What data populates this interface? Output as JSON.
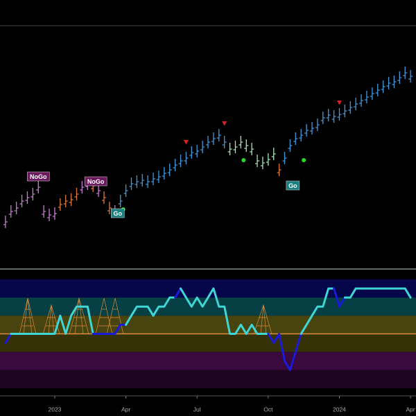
{
  "chart_data": [
    {
      "type": "ohlc",
      "xlim": [
        -10,
        66
      ],
      "ylim": [
        0,
        350
      ],
      "x": [
        -9,
        -8,
        -7,
        -6,
        -5,
        -4,
        -3,
        -2,
        -1,
        0,
        1,
        2,
        3,
        4,
        5,
        6,
        7,
        8,
        9,
        10,
        11,
        12,
        13,
        14,
        15,
        16,
        17,
        18,
        19,
        20,
        21,
        22,
        23,
        24,
        25,
        26,
        27,
        28,
        29,
        30,
        31,
        32,
        33,
        34,
        35,
        36,
        37,
        38,
        39,
        40,
        41,
        42,
        43,
        44,
        45,
        46,
        47,
        48,
        49,
        50,
        51,
        52,
        53,
        54,
        55,
        56,
        57,
        58,
        59,
        60,
        61,
        62,
        63,
        64,
        65
      ],
      "values": [
        67,
        82,
        87,
        97,
        102,
        107,
        117,
        82,
        77,
        79,
        92,
        97,
        99,
        107,
        117,
        122,
        119,
        112,
        102,
        87,
        82,
        97,
        112,
        122,
        125,
        127,
        125,
        129,
        132,
        137,
        142,
        149,
        155,
        159,
        167,
        169,
        175,
        182,
        187,
        192,
        182,
        172,
        175,
        182,
        177,
        172,
        155,
        152,
        157,
        165,
        142,
        159,
        177,
        187,
        192,
        199,
        202,
        207,
        217,
        221,
        219,
        222,
        227,
        232,
        237,
        242,
        247,
        252,
        257,
        262,
        267,
        269,
        275,
        282,
        277
      ],
      "colors": [
        "#c77dd1",
        "#c77dd1",
        "#c77dd1",
        "#c77dd1",
        "#c77dd1",
        "#c77dd1",
        "#c77dd1",
        "#c77dd1",
        "#c77dd1",
        "#c77dd1",
        "#e0783a",
        "#e0783a",
        "#e0783a",
        "#e0783a",
        "#c77dd1",
        "#c77dd1",
        "#e0783a",
        "#c77dd1",
        "#e0783a",
        "#e0783a",
        "#c77dd1",
        "#3d9be0",
        "#3d9be0",
        "#3d9be0",
        "#3d9be0",
        "#3d9be0",
        "#3d9be0",
        "#3d9be0",
        "#3d9be0",
        "#3d9be0",
        "#3d9be0",
        "#3d9be0",
        "#3d9be0",
        "#3d9be0",
        "#3d9be0",
        "#3d9be0",
        "#3d9be0",
        "#3d9be0",
        "#3d9be0",
        "#3d9be0",
        "#3d9be0",
        "#a8e6b5",
        "#a8e6b5",
        "#a8e6b5",
        "#a8e6b5",
        "#a8e6b5",
        "#a8e6b5",
        "#a8e6b5",
        "#a8e6b5",
        "#a8e6b5",
        "#e0783a",
        "#3d9be0",
        "#3d9be0",
        "#3d9be0",
        "#3d9be0",
        "#3d9be0",
        "#3d9be0",
        "#3d9be0",
        "#3d9be0",
        "#3d9be0",
        "#3d9be0",
        "#3d9be0",
        "#3d9be0",
        "#3d9be0",
        "#3d9be0",
        "#3d9be0",
        "#3d9be0",
        "#3d9be0",
        "#3d9be0",
        "#3d9be0",
        "#3d9be0",
        "#3d9be0",
        "#3d9be0",
        "#3d9be0",
        "#3d9be0"
      ],
      "annotations": [
        {
          "x": -3,
          "y": 132,
          "text": "NoGo",
          "color": "#6b1a5e"
        },
        {
          "x": 7.5,
          "y": 125,
          "text": "NoGo",
          "color": "#6b1a5e"
        },
        {
          "x": 11.5,
          "y": 79,
          "text": "Go",
          "color": "#1a7f7f"
        },
        {
          "x": 43.5,
          "y": 119,
          "text": "Go",
          "color": "#1a7f7f"
        }
      ],
      "signals": [
        {
          "x": 24,
          "y": 182,
          "shape": "triangle-down",
          "color": "#e02020"
        },
        {
          "x": 31,
          "y": 209,
          "shape": "triangle-down",
          "color": "#e02020"
        },
        {
          "x": 52,
          "y": 239,
          "shape": "triangle-down",
          "color": "#e02020"
        },
        {
          "x": 12.5,
          "y": 85,
          "shape": "circle",
          "color": "#22dd22"
        },
        {
          "x": 34.5,
          "y": 156,
          "shape": "circle",
          "color": "#22dd22"
        },
        {
          "x": 45.5,
          "y": 156,
          "shape": "circle",
          "color": "#22dd22"
        }
      ]
    },
    {
      "type": "line",
      "xlim": [
        -10,
        66
      ],
      "ylim": [
        -6,
        6
      ],
      "xticks": [
        {
          "value": 0,
          "label": "2023"
        },
        {
          "value": 13,
          "label": "Apr"
        },
        {
          "value": 26,
          "label": "Jul"
        },
        {
          "value": 39,
          "label": "Oct"
        },
        {
          "value": 52,
          "label": "2024"
        },
        {
          "value": 65,
          "label": "Apr"
        }
      ],
      "bands": [
        {
          "from": 4,
          "to": 6,
          "color": "#06064a"
        },
        {
          "from": 2,
          "to": 4,
          "color": "#063f44"
        },
        {
          "from": 0,
          "to": 2,
          "color": "#474410"
        },
        {
          "from": -2,
          "to": 0,
          "color": "#363208"
        },
        {
          "from": -4,
          "to": -2,
          "color": "#3a0a3e"
        },
        {
          "from": -6,
          "to": -4,
          "color": "#1e0622"
        }
      ],
      "zero_line": {
        "value": 0,
        "color": "#e08a3a"
      },
      "x": [
        -9,
        -8,
        -7,
        -6,
        -5,
        -4,
        -3,
        -2,
        -1,
        0,
        1,
        2,
        3,
        4,
        5,
        6,
        7,
        8,
        9,
        10,
        11,
        12,
        13,
        14,
        15,
        16,
        17,
        18,
        19,
        20,
        21,
        22,
        23,
        24,
        25,
        26,
        27,
        28,
        29,
        30,
        31,
        32,
        33,
        34,
        35,
        36,
        37,
        38,
        39,
        40,
        41,
        42,
        43,
        44,
        45,
        46,
        47,
        48,
        49,
        50,
        51,
        52,
        53,
        54,
        55,
        56,
        57,
        58,
        59,
        60,
        61,
        62,
        63,
        64,
        65
      ],
      "values": [
        -1,
        0,
        0,
        0,
        0,
        0,
        0,
        0,
        0,
        0,
        2,
        0,
        2,
        3,
        3,
        3,
        0,
        0,
        0,
        0,
        0,
        1,
        1,
        2,
        3,
        3,
        3,
        2,
        3,
        3,
        4,
        4,
        5,
        4,
        3,
        4,
        3,
        4,
        5,
        3,
        3,
        0,
        0,
        1,
        0,
        1,
        0,
        0,
        0,
        -1,
        0,
        -3,
        -4,
        -2,
        0,
        1,
        2,
        3,
        3,
        5,
        5,
        3,
        4,
        4,
        5,
        5,
        5,
        5,
        5,
        5,
        5,
        5,
        5,
        5,
        4
      ],
      "colors": [
        "#1a1ad8",
        "#1a1ad8",
        "#3fd6d6",
        "#3fd6d6",
        "#3fd6d6",
        "#3fd6d6",
        "#3fd6d6",
        "#3fd6d6",
        "#3fd6d6",
        "#3fd6d6",
        "#3fd6d6",
        "#3fd6d6",
        "#3fd6d6",
        "#3fd6d6",
        "#3fd6d6",
        "#3fd6d6",
        "#3fd6d6",
        "#1a1ad8",
        "#1a1ad8",
        "#1a1ad8",
        "#1a1ad8",
        "#1a1ad8",
        "#1a1ad8",
        "#3fd6d6",
        "#3fd6d6",
        "#3fd6d6",
        "#3fd6d6",
        "#3fd6d6",
        "#3fd6d6",
        "#3fd6d6",
        "#3fd6d6",
        "#3fd6d6",
        "#1a1ad8",
        "#3fd6d6",
        "#3fd6d6",
        "#3fd6d6",
        "#3fd6d6",
        "#3fd6d6",
        "#3fd6d6",
        "#3fd6d6",
        "#3fd6d6",
        "#3fd6d6",
        "#3fd6d6",
        "#3fd6d6",
        "#3fd6d6",
        "#3fd6d6",
        "#3fd6d6",
        "#3fd6d6",
        "#3fd6d6",
        "#1a1ad8",
        "#1a1ad8",
        "#1a1ad8",
        "#1a1ad8",
        "#1a1ad8",
        "#1a1ad8",
        "#3fd6d6",
        "#3fd6d6",
        "#3fd6d6",
        "#3fd6d6",
        "#3fd6d6",
        "#3fd6d6",
        "#1a1ad8",
        "#1a1ad8",
        "#3fd6d6",
        "#3fd6d6",
        "#3fd6d6",
        "#3fd6d6",
        "#3fd6d6",
        "#3fd6d6",
        "#3fd6d6",
        "#3fd6d6",
        "#3fd6d6",
        "#3fd6d6",
        "#3fd6d6",
        "#3fd6d6"
      ]
    }
  ]
}
